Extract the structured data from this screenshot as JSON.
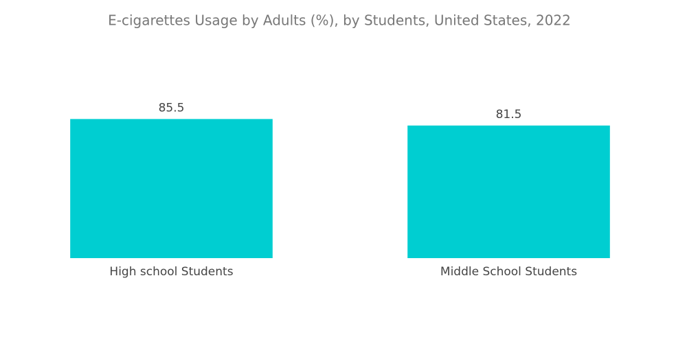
{
  "chart_data": {
    "type": "bar",
    "title": "E-cigarettes Usage by Adults (%), by Students, United States, 2022",
    "categories": [
      "High school Students",
      "Middle School Students"
    ],
    "values": [
      85.5,
      81.5
    ],
    "color": "#00ced1",
    "ylim": [
      0,
      100
    ]
  }
}
